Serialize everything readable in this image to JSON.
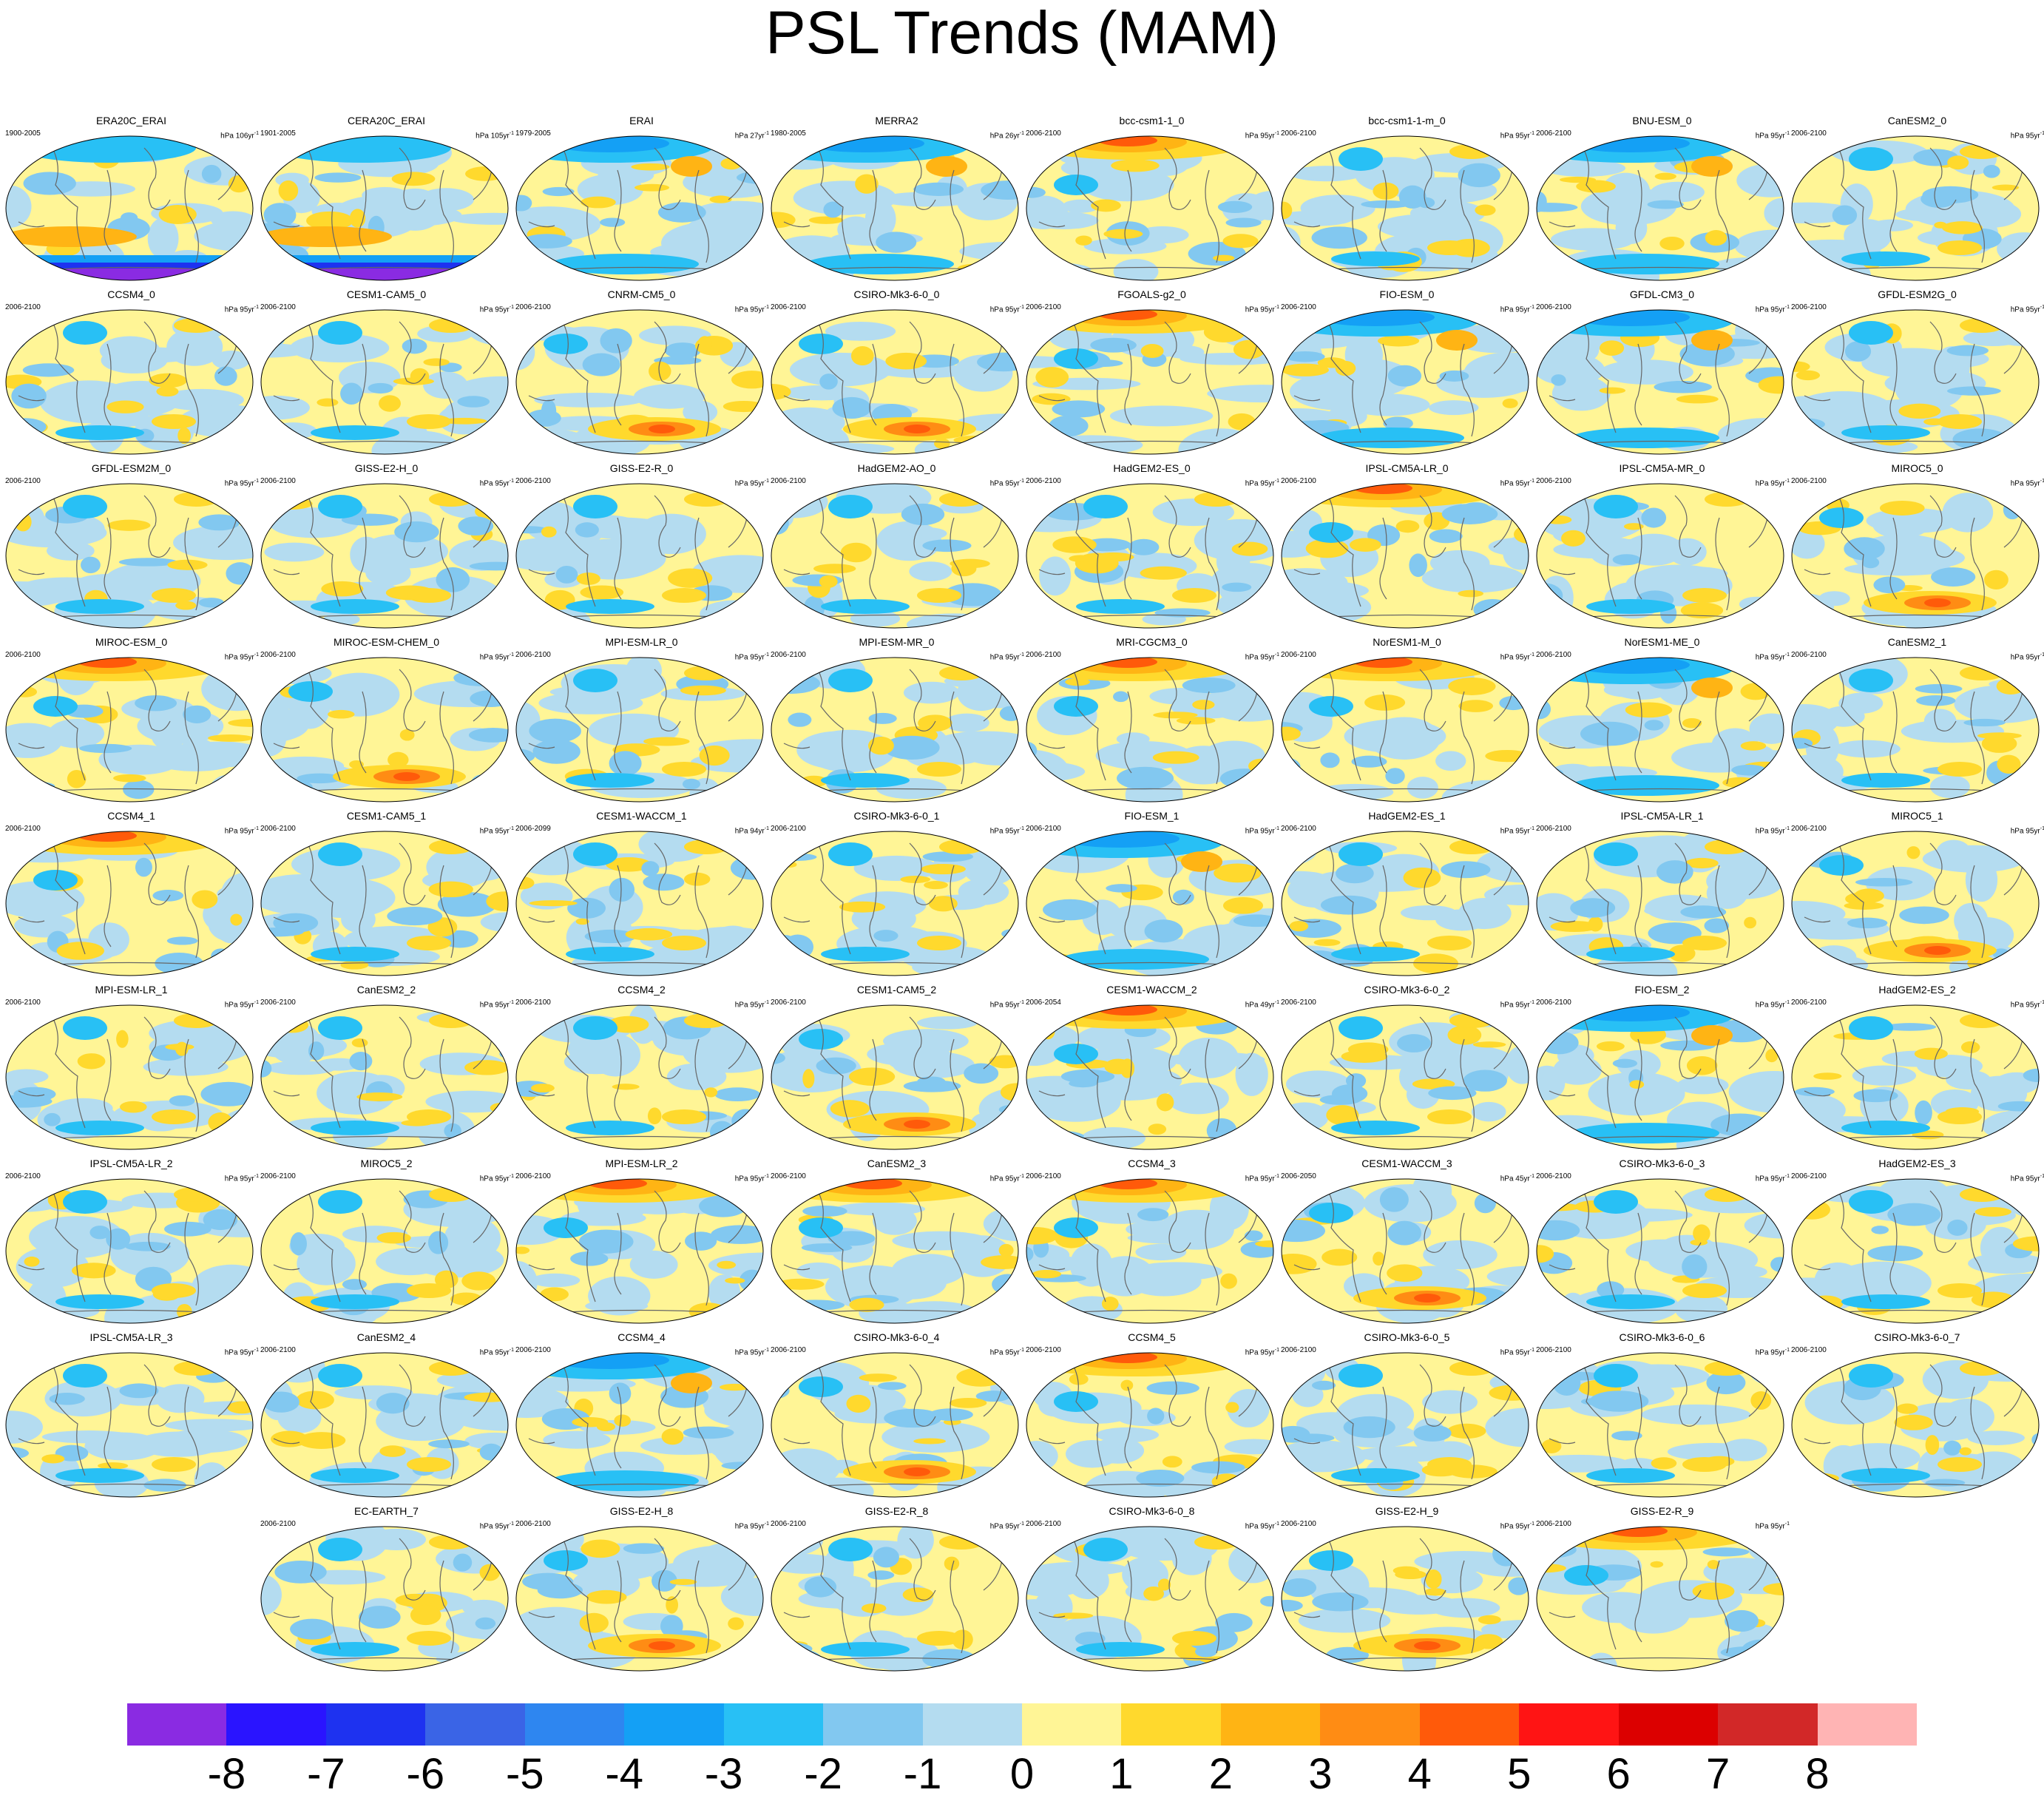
{
  "title": "PSL Trends (MAM)",
  "colorbar": {
    "colors": [
      "#8a2be2",
      "#2a14ff",
      "#1e32f0",
      "#3a64e6",
      "#2e86f0",
      "#14a0f5",
      "#28c0f5",
      "#82c8f0",
      "#b4dcf0",
      "#fff596",
      "#ffd92d",
      "#ffb414",
      "#ff8c14",
      "#ff5a0a",
      "#ff1414",
      "#dc0000",
      "#d22828",
      "#ffb4b4"
    ],
    "labels": [
      "-8",
      "-7",
      "-6",
      "-5",
      "-4",
      "-3",
      "-2",
      "-1",
      "0",
      "1",
      "2",
      "3",
      "4",
      "5",
      "6",
      "7",
      "8"
    ]
  },
  "panels": [
    {
      "name": "ERA20C_ERAI",
      "period": "1900-2005",
      "unit": "hPa 106yr",
      "exp": "-1",
      "style": "south-blue"
    },
    {
      "name": "CERA20C_ERAI",
      "period": "1901-2005",
      "unit": "hPa 105yr",
      "exp": "-1",
      "style": "south-blue"
    },
    {
      "name": "ERAI",
      "period": "1979-2005",
      "unit": "hPa 27yr",
      "exp": "-1",
      "style": "north-blue"
    },
    {
      "name": "MERRA2",
      "period": "1980-2005",
      "unit": "hPa 26yr",
      "exp": "-1",
      "style": "north-blue"
    },
    {
      "name": "bcc-csm1-1_0",
      "period": "2006-2100",
      "unit": "hPa 95yr",
      "exp": "-1",
      "style": "north-orange"
    },
    {
      "name": "bcc-csm1-1-m_0",
      "period": "2006-2100",
      "unit": "hPa 95yr",
      "exp": "-1",
      "style": "mixed"
    },
    {
      "name": "BNU-ESM_0",
      "period": "2006-2100",
      "unit": "hPa 95yr",
      "exp": "-1",
      "style": "north-blue"
    },
    {
      "name": "CanESM2_0",
      "period": "2006-2100",
      "unit": "hPa 95yr",
      "exp": "-1",
      "style": "mixed"
    },
    {
      "name": "CCSM4_0",
      "period": "2006-2100",
      "unit": "hPa 95yr",
      "exp": "-1",
      "style": "mixed"
    },
    {
      "name": "CESM1-CAM5_0",
      "period": "2006-2100",
      "unit": "hPa 95yr",
      "exp": "-1",
      "style": "mixed"
    },
    {
      "name": "CNRM-CM5_0",
      "period": "2006-2100",
      "unit": "hPa 95yr",
      "exp": "-1",
      "style": "south-orange"
    },
    {
      "name": "CSIRO-Mk3-6-0_0",
      "period": "2006-2100",
      "unit": "hPa 95yr",
      "exp": "-1",
      "style": "south-orange"
    },
    {
      "name": "FGOALS-g2_0",
      "period": "2006-2100",
      "unit": "hPa 95yr",
      "exp": "-1",
      "style": "north-orange"
    },
    {
      "name": "FIO-ESM_0",
      "period": "2006-2100",
      "unit": "hPa 95yr",
      "exp": "-1",
      "style": "north-blue"
    },
    {
      "name": "GFDL-CM3_0",
      "period": "2006-2100",
      "unit": "hPa 95yr",
      "exp": "-1",
      "style": "north-blue"
    },
    {
      "name": "GFDL-ESM2G_0",
      "period": "2006-2100",
      "unit": "hPa 95yr",
      "exp": "-1",
      "style": "mixed"
    },
    {
      "name": "GFDL-ESM2M_0",
      "period": "2006-2100",
      "unit": "hPa 95yr",
      "exp": "-1",
      "style": "mixed"
    },
    {
      "name": "GISS-E2-H_0",
      "period": "2006-2100",
      "unit": "hPa 95yr",
      "exp": "-1",
      "style": "mixed"
    },
    {
      "name": "GISS-E2-R_0",
      "period": "2006-2100",
      "unit": "hPa 95yr",
      "exp": "-1",
      "style": "mixed"
    },
    {
      "name": "HadGEM2-AO_0",
      "period": "2006-2100",
      "unit": "hPa 95yr",
      "exp": "-1",
      "style": "mixed"
    },
    {
      "name": "HadGEM2-ES_0",
      "period": "2006-2100",
      "unit": "hPa 95yr",
      "exp": "-1",
      "style": "mixed"
    },
    {
      "name": "IPSL-CM5A-LR_0",
      "period": "2006-2100",
      "unit": "hPa 95yr",
      "exp": "-1",
      "style": "north-orange"
    },
    {
      "name": "IPSL-CM5A-MR_0",
      "period": "2006-2100",
      "unit": "hPa 95yr",
      "exp": "-1",
      "style": "mixed"
    },
    {
      "name": "MIROC5_0",
      "period": "2006-2100",
      "unit": "hPa 95yr",
      "exp": "-1",
      "style": "south-orange"
    },
    {
      "name": "MIROC-ESM_0",
      "period": "2006-2100",
      "unit": "hPa 95yr",
      "exp": "-1",
      "style": "north-orange"
    },
    {
      "name": "MIROC-ESM-CHEM_0",
      "period": "2006-2100",
      "unit": "hPa 95yr",
      "exp": "-1",
      "style": "south-orange"
    },
    {
      "name": "MPI-ESM-LR_0",
      "period": "2006-2100",
      "unit": "hPa 95yr",
      "exp": "-1",
      "style": "mixed"
    },
    {
      "name": "MPI-ESM-MR_0",
      "period": "2006-2100",
      "unit": "hPa 95yr",
      "exp": "-1",
      "style": "mixed"
    },
    {
      "name": "MRI-CGCM3_0",
      "period": "2006-2100",
      "unit": "hPa 95yr",
      "exp": "-1",
      "style": "north-orange"
    },
    {
      "name": "NorESM1-M_0",
      "period": "2006-2100",
      "unit": "hPa 95yr",
      "exp": "-1",
      "style": "north-orange"
    },
    {
      "name": "NorESM1-ME_0",
      "period": "2006-2100",
      "unit": "hPa 95yr",
      "exp": "-1",
      "style": "north-blue"
    },
    {
      "name": "CanESM2_1",
      "period": "2006-2100",
      "unit": "hPa 95yr",
      "exp": "-1",
      "style": "mixed"
    },
    {
      "name": "CCSM4_1",
      "period": "2006-2100",
      "unit": "hPa 95yr",
      "exp": "-1",
      "style": "north-orange"
    },
    {
      "name": "CESM1-CAM5_1",
      "period": "2006-2100",
      "unit": "hPa 95yr",
      "exp": "-1",
      "style": "mixed"
    },
    {
      "name": "CESM1-WACCM_1",
      "period": "2006-2099",
      "unit": "hPa 94yr",
      "exp": "-1",
      "style": "mixed"
    },
    {
      "name": "CSIRO-Mk3-6-0_1",
      "period": "2006-2100",
      "unit": "hPa 95yr",
      "exp": "-1",
      "style": "mixed"
    },
    {
      "name": "FIO-ESM_1",
      "period": "2006-2100",
      "unit": "hPa 95yr",
      "exp": "-1",
      "style": "north-blue"
    },
    {
      "name": "HadGEM2-ES_1",
      "period": "2006-2100",
      "unit": "hPa 95yr",
      "exp": "-1",
      "style": "mixed"
    },
    {
      "name": "IPSL-CM5A-LR_1",
      "period": "2006-2100",
      "unit": "hPa 95yr",
      "exp": "-1",
      "style": "mixed"
    },
    {
      "name": "MIROC5_1",
      "period": "2006-2100",
      "unit": "hPa 95yr",
      "exp": "-1",
      "style": "south-orange"
    },
    {
      "name": "MPI-ESM-LR_1",
      "period": "2006-2100",
      "unit": "hPa 95yr",
      "exp": "-1",
      "style": "mixed"
    },
    {
      "name": "CanESM2_2",
      "period": "2006-2100",
      "unit": "hPa 95yr",
      "exp": "-1",
      "style": "mixed"
    },
    {
      "name": "CCSM4_2",
      "period": "2006-2100",
      "unit": "hPa 95yr",
      "exp": "-1",
      "style": "mixed"
    },
    {
      "name": "CESM1-CAM5_2",
      "period": "2006-2100",
      "unit": "hPa 95yr",
      "exp": "-1",
      "style": "south-orange"
    },
    {
      "name": "CESM1-WACCM_2",
      "period": "2006-2054",
      "unit": "hPa 49yr",
      "exp": "-1",
      "style": "north-orange"
    },
    {
      "name": "CSIRO-Mk3-6-0_2",
      "period": "2006-2100",
      "unit": "hPa 95yr",
      "exp": "-1",
      "style": "mixed"
    },
    {
      "name": "FIO-ESM_2",
      "period": "2006-2100",
      "unit": "hPa 95yr",
      "exp": "-1",
      "style": "north-blue"
    },
    {
      "name": "HadGEM2-ES_2",
      "period": "2006-2100",
      "unit": "hPa 95yr",
      "exp": "-1",
      "style": "mixed"
    },
    {
      "name": "IPSL-CM5A-LR_2",
      "period": "2006-2100",
      "unit": "hPa 95yr",
      "exp": "-1",
      "style": "mixed"
    },
    {
      "name": "MIROC5_2",
      "period": "2006-2100",
      "unit": "hPa 95yr",
      "exp": "-1",
      "style": "mixed"
    },
    {
      "name": "MPI-ESM-LR_2",
      "period": "2006-2100",
      "unit": "hPa 95yr",
      "exp": "-1",
      "style": "north-orange"
    },
    {
      "name": "CanESM2_3",
      "period": "2006-2100",
      "unit": "hPa 95yr",
      "exp": "-1",
      "style": "north-orange"
    },
    {
      "name": "CCSM4_3",
      "period": "2006-2100",
      "unit": "hPa 95yr",
      "exp": "-1",
      "style": "north-orange"
    },
    {
      "name": "CESM1-WACCM_3",
      "period": "2006-2050",
      "unit": "hPa 45yr",
      "exp": "-1",
      "style": "south-orange"
    },
    {
      "name": "CSIRO-Mk3-6-0_3",
      "period": "2006-2100",
      "unit": "hPa 95yr",
      "exp": "-1",
      "style": "mixed"
    },
    {
      "name": "HadGEM2-ES_3",
      "period": "2006-2100",
      "unit": "hPa 95yr",
      "exp": "-1",
      "style": "mixed"
    },
    {
      "name": "IPSL-CM5A-LR_3",
      "period": "",
      "unit": "hPa 95yr",
      "exp": "-1",
      "style": "mixed"
    },
    {
      "name": "CanESM2_4",
      "period": "2006-2100",
      "unit": "hPa 95yr",
      "exp": "-1",
      "style": "mixed"
    },
    {
      "name": "CCSM4_4",
      "period": "2006-2100",
      "unit": "hPa 95yr",
      "exp": "-1",
      "style": "north-blue"
    },
    {
      "name": "CSIRO-Mk3-6-0_4",
      "period": "2006-2100",
      "unit": "hPa 95yr",
      "exp": "-1",
      "style": "south-orange"
    },
    {
      "name": "CCSM4_5",
      "period": "2006-2100",
      "unit": "hPa 95yr",
      "exp": "-1",
      "style": "north-orange"
    },
    {
      "name": "CSIRO-Mk3-6-0_5",
      "period": "2006-2100",
      "unit": "hPa 95yr",
      "exp": "-1",
      "style": "mixed"
    },
    {
      "name": "CSIRO-Mk3-6-0_6",
      "period": "2006-2100",
      "unit": "hPa 95yr",
      "exp": "-1",
      "style": "mixed"
    },
    {
      "name": "CSIRO-Mk3-6-0_7",
      "period": "2006-2100",
      "unit": "",
      "exp": "",
      "style": "mixed"
    },
    {
      "name": "EC-EARTH_7",
      "period": "2006-2100",
      "unit": "hPa 95yr",
      "exp": "-1",
      "style": "mixed"
    },
    {
      "name": "GISS-E2-H_8",
      "period": "2006-2100",
      "unit": "hPa 95yr",
      "exp": "-1",
      "style": "south-orange"
    },
    {
      "name": "GISS-E2-R_8",
      "period": "2006-2100",
      "unit": "hPa 95yr",
      "exp": "-1",
      "style": "mixed"
    },
    {
      "name": "CSIRO-Mk3-6-0_8",
      "period": "2006-2100",
      "unit": "hPa 95yr",
      "exp": "-1",
      "style": "mixed"
    },
    {
      "name": "GISS-E2-H_9",
      "period": "2006-2100",
      "unit": "hPa 95yr",
      "exp": "-1",
      "style": "south-orange"
    },
    {
      "name": "GISS-E2-R_9",
      "period": "2006-2100",
      "unit": "hPa 95yr",
      "exp": "-1",
      "style": "north-orange"
    }
  ]
}
